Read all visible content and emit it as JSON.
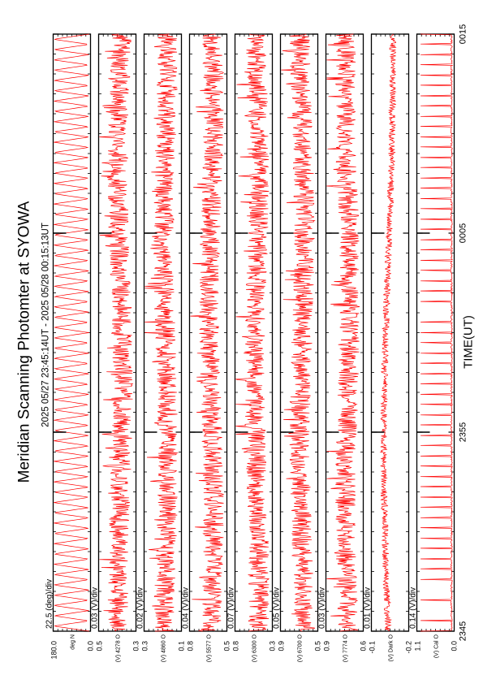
{
  "header": {
    "title": "Meridian Scanning Photomter at SYOWA",
    "subtitle": "2025 05/27 23:45:14UT - 2025 05/28 00:15:13UT"
  },
  "chart_data": {
    "type": "line",
    "title": "Meridian Scanning Photomter at SYOWA",
    "subtitle": "2025 05/27 23:45:14UT - 2025 05/28 00:15:13UT",
    "xlabel": "TIME(UT)",
    "x_ticks": [
      "2345",
      "2355",
      "0005",
      "0015"
    ],
    "x_range_minutes": [
      0,
      30
    ],
    "grid": true,
    "line_color": "#ff0000",
    "panels": [
      {
        "name": "angle",
        "scale": "22.5 (deg)/div",
        "ytick_top": "180.0",
        "ytick_bottom": "0.0",
        "unit_labels": [
          "deg",
          "N"
        ],
        "signal": "sawtooth",
        "ylim": [
          0,
          180
        ]
      },
      {
        "name": "ch1",
        "scale": "0.03 (V)/div",
        "ytick_top": "0.5",
        "ytick_bottom": "0.3",
        "unit_labels": [
          "(V)",
          "4278",
          "O"
        ],
        "signal": "noisy",
        "ylim": [
          0.3,
          0.5
        ]
      },
      {
        "name": "ch2",
        "scale": "0.02 (V)/div",
        "ytick_top": "0.3",
        "ytick_bottom": "0.1",
        "unit_labels": [
          "(V)",
          "4860",
          "O"
        ],
        "signal": "noisy",
        "ylim": [
          0.1,
          0.3
        ]
      },
      {
        "name": "ch3",
        "scale": "0.04 (V)/div",
        "ytick_top": "0.8",
        "ytick_bottom": "0.5",
        "unit_labels": [
          "(V)",
          "5577",
          "O"
        ],
        "signal": "noisy",
        "ylim": [
          0.5,
          0.8
        ]
      },
      {
        "name": "ch4",
        "scale": "0.07 (V)/div",
        "ytick_top": "0.8",
        "ytick_bottom": "0.3",
        "unit_labels": [
          "(V)",
          "6300",
          "O"
        ],
        "signal": "noisy",
        "ylim": [
          0.3,
          0.8
        ]
      },
      {
        "name": "ch5",
        "scale": "0.05 (V)/div",
        "ytick_top": "0.9",
        "ytick_bottom": "0.5",
        "unit_labels": [
          "(V)",
          "6700",
          "O"
        ],
        "signal": "noisy",
        "ylim": [
          0.5,
          0.9
        ]
      },
      {
        "name": "ch6",
        "scale": "0.03 (V)/div",
        "ytick_top": "0.9",
        "ytick_bottom": "0.6",
        "unit_labels": [
          "(V)",
          "7774",
          "O"
        ],
        "signal": "noisy",
        "ylim": [
          0.6,
          0.9
        ]
      },
      {
        "name": "ch7",
        "scale": "0.01 (V)/div",
        "ytick_top": "-0.1",
        "ytick_bottom": "-0.2",
        "unit_labels": [
          "(V)",
          "Dark",
          "O"
        ],
        "signal": "smooth",
        "ylim": [
          -0.2,
          -0.1
        ]
      },
      {
        "name": "ch8",
        "scale": "0.14 (V)/div",
        "ytick_top": "1.1",
        "ytick_bottom": "0.0",
        "unit_labels": [
          "(V)",
          "Cal",
          "O"
        ],
        "signal": "spikes",
        "ylim": [
          0.0,
          1.1
        ]
      }
    ]
  }
}
